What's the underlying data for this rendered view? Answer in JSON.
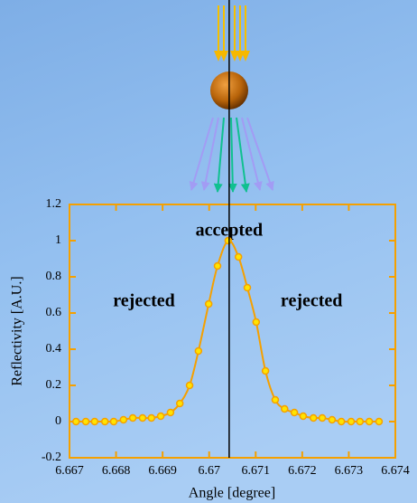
{
  "chart_data": {
    "type": "line",
    "x_label": "Angle [degree]",
    "y_label": "Reflectivity [A.U.]",
    "x": [
      6.66714,
      6.66735,
      6.66754,
      6.66776,
      6.66795,
      6.66816,
      6.66836,
      6.66857,
      6.66876,
      6.66896,
      6.66917,
      6.66937,
      6.66958,
      6.66977,
      6.66999,
      6.67018,
      6.67041,
      6.67063,
      6.67082,
      6.67101,
      6.67121,
      6.67142,
      6.67162,
      6.67183,
      6.67202,
      6.67224,
      6.67243,
      6.67264,
      6.67284,
      6.67305,
      6.67324,
      6.67344,
      6.67365
    ],
    "values": [
      0,
      0,
      0,
      0,
      0,
      0.01,
      0.02,
      0.02,
      0.02,
      0.03,
      0.05,
      0.1,
      0.2,
      0.39,
      0.65,
      0.86,
      1,
      0.91,
      0.74,
      0.55,
      0.28,
      0.12,
      0.07,
      0.05,
      0.03,
      0.02,
      0.02,
      0.01,
      0,
      0,
      0,
      0,
      0
    ],
    "color": "#f5a000",
    "marker_fill": "#ffe400",
    "xlim": [
      6.667,
      6.674
    ],
    "xticks": [
      6.667,
      6.668,
      6.669,
      6.67,
      6.671,
      6.672,
      6.673,
      6.674
    ],
    "ylim": [
      -0.2,
      1.2
    ],
    "yticks": [
      -0.2,
      0,
      0.2,
      0.4,
      0.6,
      0.8,
      1,
      1.2
    ],
    "vline": 6.67043,
    "annotations": [
      {
        "text": "accepted",
        "x": 6.67043,
        "y": 1.05,
        "color": "#1fc79a"
      },
      {
        "text": "rejected",
        "x": 6.6686,
        "y": 0.66,
        "color": "#a9a6f0"
      },
      {
        "text": "rejected",
        "x": 6.6722,
        "y": 0.66,
        "color": "#a9a6f0"
      }
    ]
  }
}
